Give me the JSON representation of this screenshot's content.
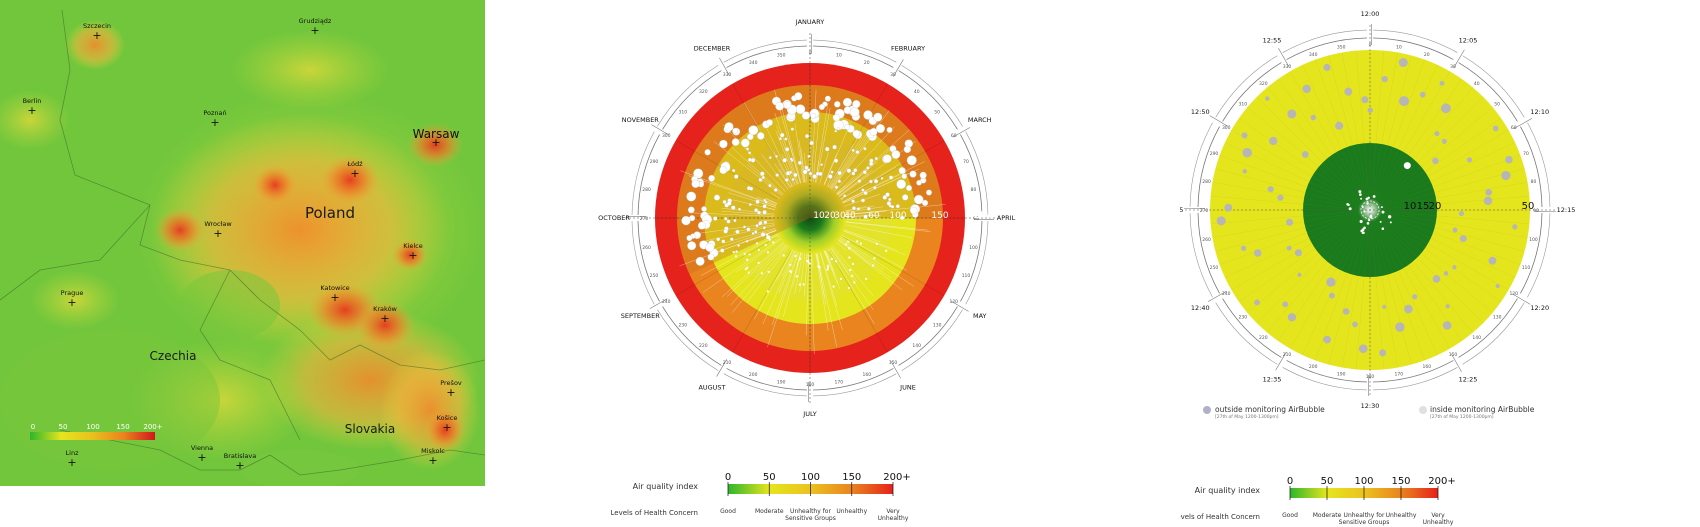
{
  "colors": {
    "good": "#2db52d",
    "moderate": "#e5e51e",
    "sensitive": "#e9841f",
    "unhealthy": "#e5221b",
    "very_unhealthy": "#b5121b",
    "dark_green": "#1b7a1b",
    "map_base": "#6cc43a"
  },
  "chart_data": [
    {
      "type": "heatmap",
      "title": "",
      "regions": {
        "poland": "Poland",
        "czechia": "Czechia",
        "slovakia": "Slovakia"
      },
      "cities": [
        {
          "name": "Szczecin",
          "aqi": 110
        },
        {
          "name": "Grudziądz",
          "aqi": 80
        },
        {
          "name": "Berlin",
          "aqi": 90
        },
        {
          "name": "Poznań",
          "aqi": 100
        },
        {
          "name": "Warsaw",
          "aqi": 150
        },
        {
          "name": "Łódź",
          "aqi": 170
        },
        {
          "name": "Wrocław",
          "aqi": 140
        },
        {
          "name": "Kielce",
          "aqi": 150
        },
        {
          "name": "Prague",
          "aqi": 100
        },
        {
          "name": "Katowice",
          "aqi": 180
        },
        {
          "name": "Kraków",
          "aqi": 185
        },
        {
          "name": "Prešov",
          "aqi": 150
        },
        {
          "name": "Košice",
          "aqi": 160
        },
        {
          "name": "Linz",
          "aqi": 70
        },
        {
          "name": "Vienna",
          "aqi": 90
        },
        {
          "name": "Bratislava",
          "aqi": 95
        },
        {
          "name": "Miskolc",
          "aqi": 110
        }
      ],
      "legend_ticks": [
        "0",
        "50",
        "100",
        "150",
        "200+"
      ]
    },
    {
      "type": "scatter",
      "title": "",
      "subtype": "polar",
      "months": [
        "JANUARY",
        "FEBRUARY",
        "MARCH",
        "APRIL",
        "MAY",
        "JUNE",
        "JULY",
        "AUGUST",
        "SEPTEMBER",
        "OCTOBER",
        "NOVEMBER",
        "DECEMBER"
      ],
      "day_ticks": [
        "0",
        "10",
        "20",
        "30",
        "40",
        "50",
        "60",
        "70",
        "80",
        "90",
        "100",
        "110",
        "120",
        "130",
        "140",
        "150",
        "160",
        "170",
        "180",
        "190",
        "200",
        "210",
        "220",
        "230",
        "240",
        "250",
        "260",
        "270",
        "280",
        "290",
        "300",
        "310",
        "320",
        "330",
        "340",
        "350",
        "360"
      ],
      "radial_labels": [
        "10",
        "20",
        "30",
        "40",
        "60",
        "100",
        "150",
        "200"
      ],
      "band_limits": [
        0,
        50,
        100,
        150,
        200
      ],
      "data_span_deg": [
        245,
        450
      ],
      "note": "daily AQI samples, roughly Oct through Mar"
    },
    {
      "type": "scatter",
      "title": "",
      "subtype": "polar",
      "time_labels": [
        "12:00",
        "12:05",
        "12:10",
        "12:15",
        "12:20",
        "12:25",
        "12:30",
        "12:35",
        "12:40",
        "12:45",
        "12:50",
        "12:55"
      ],
      "minute_ticks": [
        "0",
        "10",
        "20",
        "30",
        "40",
        "50",
        "60",
        "70",
        "80",
        "90",
        "100",
        "110",
        "120",
        "130",
        "140",
        "150",
        "160",
        "170",
        "180",
        "190",
        "200",
        "210",
        "220",
        "230",
        "240",
        "250",
        "260",
        "270",
        "280",
        "290",
        "300",
        "310",
        "320",
        "330",
        "340",
        "350",
        "360"
      ],
      "radial_labels": [
        "10",
        "15",
        "20",
        "50"
      ],
      "band_limits": [
        0,
        20,
        100
      ],
      "legend": {
        "outside": "outside monitoring AirBubble",
        "outside_date": "[27th of May 1200-1300pm]",
        "inside": "inside monitoring AirBubble",
        "inside_date": "[27th of May 1200-1300pm]"
      }
    }
  ],
  "aqi_legend": {
    "title": "Air quality index",
    "ticks": [
      "0",
      "50",
      "100",
      "150",
      "200+"
    ],
    "concern_title": "Levels of Health Concern",
    "levels": [
      "Good",
      "Moderate",
      "Unhealthy for\nSensitive Groups",
      "Unhealthy",
      "Very\nUnhealthy"
    ]
  }
}
